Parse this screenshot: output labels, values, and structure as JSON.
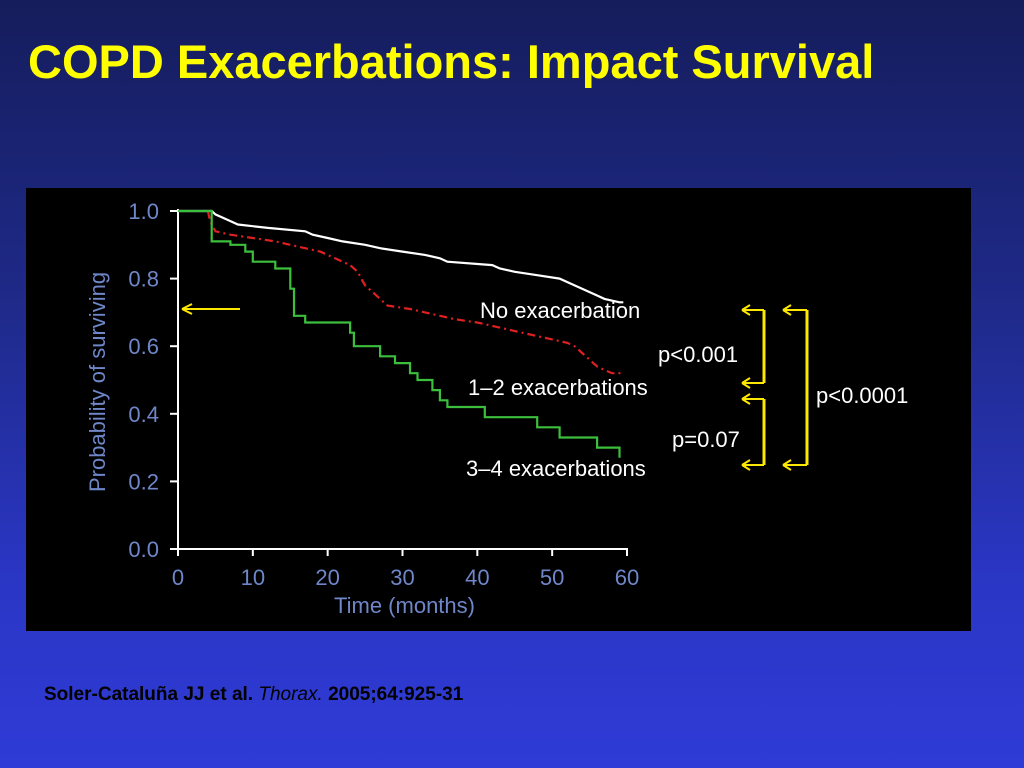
{
  "slide": {
    "title": "COPD Exacerbations: Impact Survival",
    "citation": {
      "authors": "Soler-Cataluña JJ et al.",
      "journal": "Thorax.",
      "details": "2005;64:925-31"
    }
  },
  "colors": {
    "title": "#ffff00",
    "axis_text": "#6f86c8",
    "no_exacerbation": "#ffffff",
    "exacerbations_1_2": "#e02020",
    "exacerbations_3_4": "#3cbf3c",
    "brackets": "#ffe800"
  },
  "chart_data": {
    "type": "line",
    "xlabel": "Time (months)",
    "ylabel": "Probability of surviving",
    "xlim": [
      0,
      60
    ],
    "ylim": [
      0,
      1.0
    ],
    "x_ticks": [
      "0",
      "10",
      "20",
      "30",
      "40",
      "50",
      "60"
    ],
    "y_ticks": [
      "0.0",
      "0.2",
      "0.4",
      "0.6",
      "0.8",
      "1.0"
    ],
    "grid": false,
    "series": [
      {
        "name": "No exacerbation",
        "style": "solid",
        "points": [
          [
            0,
            1.0
          ],
          [
            4.5,
            1.0
          ],
          [
            5,
            0.99
          ],
          [
            6,
            0.98
          ],
          [
            7,
            0.97
          ],
          [
            8,
            0.96
          ],
          [
            12,
            0.95
          ],
          [
            17,
            0.94
          ],
          [
            18,
            0.93
          ],
          [
            20,
            0.92
          ],
          [
            22,
            0.91
          ],
          [
            25,
            0.9
          ],
          [
            27,
            0.89
          ],
          [
            30,
            0.88
          ],
          [
            33,
            0.87
          ],
          [
            35,
            0.86
          ],
          [
            36,
            0.85
          ],
          [
            42,
            0.84
          ],
          [
            43,
            0.83
          ],
          [
            45,
            0.82
          ],
          [
            48,
            0.81
          ],
          [
            51,
            0.8
          ],
          [
            52,
            0.79
          ],
          [
            53,
            0.78
          ],
          [
            54,
            0.77
          ],
          [
            55,
            0.76
          ],
          [
            56,
            0.75
          ],
          [
            57,
            0.74
          ],
          [
            59,
            0.73
          ],
          [
            59.5,
            0.73
          ]
        ]
      },
      {
        "name": "1–2 exacerbations",
        "style": "dash-dot",
        "points": [
          [
            4,
            1.0
          ],
          [
            4.2,
            0.98
          ],
          [
            4.5,
            0.96
          ],
          [
            5,
            0.94
          ],
          [
            7,
            0.93
          ],
          [
            10,
            0.92
          ],
          [
            13,
            0.91
          ],
          [
            15,
            0.9
          ],
          [
            17,
            0.89
          ],
          [
            19,
            0.88
          ],
          [
            21,
            0.86
          ],
          [
            22,
            0.85
          ],
          [
            23,
            0.84
          ],
          [
            24,
            0.82
          ],
          [
            24.5,
            0.8
          ],
          [
            25,
            0.78
          ],
          [
            26,
            0.76
          ],
          [
            27,
            0.74
          ],
          [
            28,
            0.72
          ],
          [
            31,
            0.71
          ],
          [
            33,
            0.7
          ],
          [
            35,
            0.69
          ],
          [
            37,
            0.68
          ],
          [
            40,
            0.67
          ],
          [
            42,
            0.66
          ],
          [
            44,
            0.65
          ],
          [
            46,
            0.64
          ],
          [
            48,
            0.63
          ],
          [
            50,
            0.62
          ],
          [
            52,
            0.61
          ],
          [
            53,
            0.6
          ],
          [
            54,
            0.58
          ],
          [
            55,
            0.56
          ],
          [
            56,
            0.54
          ],
          [
            57,
            0.53
          ],
          [
            58,
            0.52
          ],
          [
            59.5,
            0.52
          ]
        ]
      },
      {
        "name": "3–4 exacerbations",
        "style": "solid",
        "points": [
          [
            0,
            1.0
          ],
          [
            4.5,
            1.0
          ],
          [
            4.5,
            0.91
          ],
          [
            7,
            0.91
          ],
          [
            7,
            0.9
          ],
          [
            9,
            0.9
          ],
          [
            9,
            0.88
          ],
          [
            10,
            0.88
          ],
          [
            10,
            0.85
          ],
          [
            13,
            0.85
          ],
          [
            13,
            0.83
          ],
          [
            15,
            0.83
          ],
          [
            15,
            0.77
          ],
          [
            15.5,
            0.77
          ],
          [
            15.5,
            0.69
          ],
          [
            17,
            0.69
          ],
          [
            17,
            0.67
          ],
          [
            23,
            0.67
          ],
          [
            23,
            0.64
          ],
          [
            23.5,
            0.64
          ],
          [
            23.5,
            0.6
          ],
          [
            27,
            0.6
          ],
          [
            27,
            0.57
          ],
          [
            29,
            0.57
          ],
          [
            29,
            0.55
          ],
          [
            31,
            0.55
          ],
          [
            31,
            0.52
          ],
          [
            32,
            0.52
          ],
          [
            32,
            0.5
          ],
          [
            34,
            0.5
          ],
          [
            34,
            0.47
          ],
          [
            35,
            0.47
          ],
          [
            35,
            0.44
          ],
          [
            36,
            0.44
          ],
          [
            36,
            0.42
          ],
          [
            41,
            0.42
          ],
          [
            41,
            0.39
          ],
          [
            48,
            0.39
          ],
          [
            48,
            0.36
          ],
          [
            51,
            0.36
          ],
          [
            51,
            0.33
          ],
          [
            56,
            0.33
          ],
          [
            56,
            0.3
          ],
          [
            59,
            0.3
          ],
          [
            59,
            0.27
          ]
        ]
      }
    ],
    "annotations": {
      "reference_arrow_y": 0.71,
      "p_1_2": "p<0.001",
      "p_3_4": "p=0.07",
      "p_overall": "p<0.0001"
    }
  }
}
